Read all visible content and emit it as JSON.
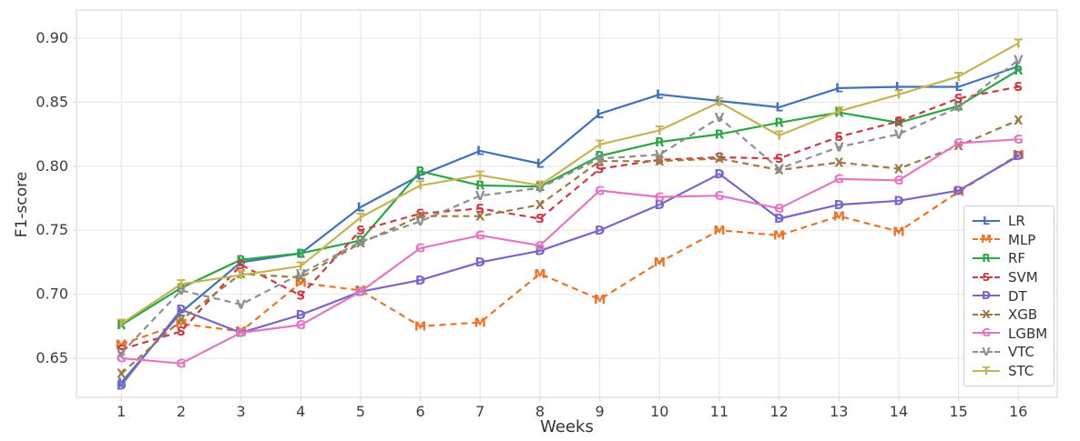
{
  "chart_data": {
    "type": "line",
    "title": "",
    "xlabel": "Weeks",
    "ylabel": "F1-score",
    "x": [
      1,
      2,
      3,
      4,
      5,
      6,
      7,
      8,
      9,
      10,
      11,
      12,
      13,
      14,
      15,
      16
    ],
    "x_ticks": [
      "1",
      "2",
      "3",
      "4",
      "5",
      "6",
      "7",
      "8",
      "9",
      "10",
      "11",
      "12",
      "13",
      "14",
      "15",
      "16"
    ],
    "y_ticks": [
      "0.65",
      "0.70",
      "0.75",
      "0.80",
      "0.85",
      "0.90"
    ],
    "xlim": [
      0.25,
      16.65
    ],
    "ylim": [
      0.6195,
      0.922
    ],
    "grid": true,
    "legend_position": "lower right",
    "series": [
      {
        "name": "LR",
        "marker": "L",
        "color": "#4272b8",
        "dash": "solid",
        "values": [
          0.631,
          0.686,
          0.725,
          0.732,
          0.768,
          0.793,
          0.812,
          0.802,
          0.841,
          0.856,
          0.851,
          0.846,
          0.861,
          0.862,
          0.862,
          0.878
        ]
      },
      {
        "name": "MLP",
        "marker": "M",
        "color": "#ec7428",
        "dash": "dashed",
        "values": [
          0.661,
          0.677,
          0.671,
          0.709,
          0.703,
          0.675,
          0.678,
          0.716,
          0.696,
          0.725,
          0.75,
          0.746,
          0.761,
          0.749,
          0.78,
          0.809
        ]
      },
      {
        "name": "RF",
        "marker": "R",
        "color": "#2ca646",
        "dash": "solid",
        "values": [
          0.676,
          0.705,
          0.727,
          0.732,
          0.742,
          0.796,
          0.785,
          0.784,
          0.808,
          0.819,
          0.825,
          0.834,
          0.842,
          0.834,
          0.847,
          0.875
        ]
      },
      {
        "name": "SVM",
        "marker": "S",
        "color": "#cc3a44",
        "dash": "dashed",
        "values": [
          0.657,
          0.671,
          0.723,
          0.699,
          0.75,
          0.763,
          0.767,
          0.759,
          0.798,
          0.805,
          0.807,
          0.806,
          0.823,
          0.835,
          0.853,
          0.862
        ]
      },
      {
        "name": "DT",
        "marker": "D",
        "color": "#7668c9",
        "dash": "solid",
        "values": [
          0.629,
          0.688,
          0.67,
          0.684,
          0.702,
          0.711,
          0.725,
          0.734,
          0.75,
          0.77,
          0.794,
          0.759,
          0.77,
          0.773,
          0.781,
          0.808
        ]
      },
      {
        "name": "XGB",
        "marker": "X",
        "color": "#9c7b43",
        "dash": "dashed",
        "values": [
          0.638,
          0.68,
          0.716,
          0.713,
          0.74,
          0.761,
          0.761,
          0.77,
          0.804,
          0.804,
          0.806,
          0.797,
          0.803,
          0.798,
          0.816,
          0.836
        ]
      },
      {
        "name": "LGBM",
        "marker": "G",
        "color": "#e377c2",
        "dash": "solid",
        "values": [
          0.65,
          0.646,
          0.67,
          0.676,
          0.702,
          0.736,
          0.746,
          0.738,
          0.781,
          0.776,
          0.777,
          0.767,
          0.79,
          0.789,
          0.818,
          0.821
        ]
      },
      {
        "name": "VTC",
        "marker": "V",
        "color": "#8f8f8f",
        "dash": "dashed",
        "values": [
          0.654,
          0.703,
          0.692,
          0.716,
          0.741,
          0.757,
          0.777,
          0.783,
          0.806,
          0.809,
          0.838,
          0.798,
          0.815,
          0.825,
          0.846,
          0.883
        ]
      },
      {
        "name": "STC",
        "marker": "T",
        "color": "#c4b454",
        "dash": "solid",
        "values": [
          0.677,
          0.708,
          0.715,
          0.722,
          0.76,
          0.785,
          0.793,
          0.785,
          0.817,
          0.828,
          0.85,
          0.824,
          0.843,
          0.856,
          0.87,
          0.896
        ]
      }
    ],
    "colors": {
      "grid": "#e7e7e7",
      "spine": "#d9d9d9",
      "tick_label": "#3d3d3d"
    }
  }
}
